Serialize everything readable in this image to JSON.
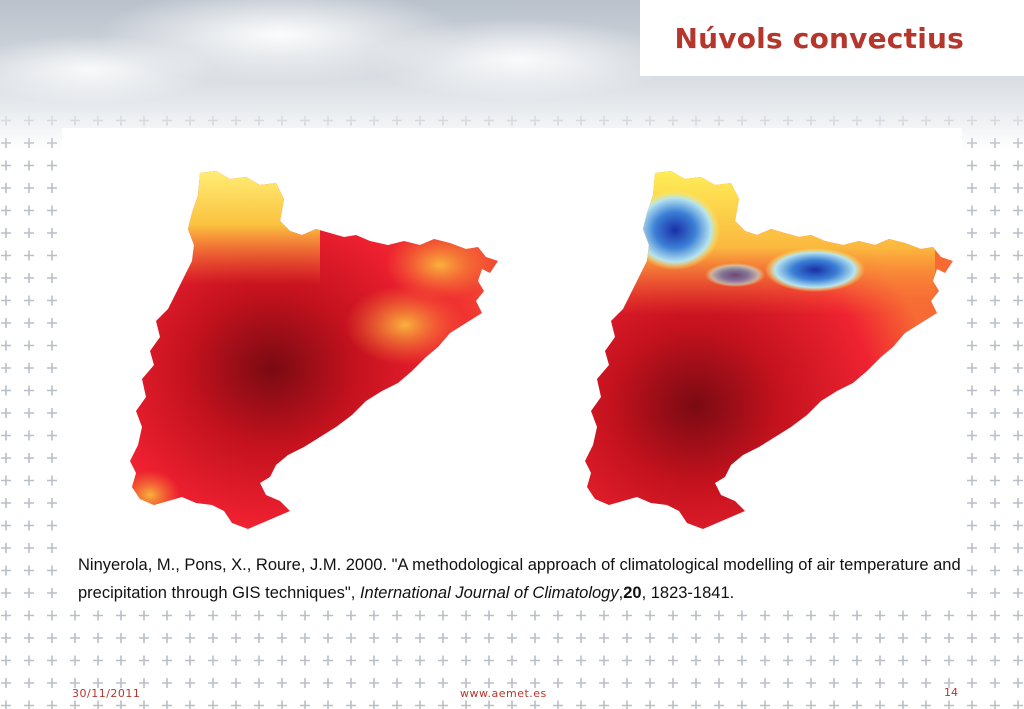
{
  "slide": {
    "title": "Núvols convectius",
    "citation": {
      "prefix": "Ninyerola, M., Pons, X., Roure, J.M. 2000. \"A methodological approach of climatological modelling of air temperature and precipitation through GIS techniques\", ",
      "journal": "International Journal of Climatology",
      "sep": ",",
      "volume": "20",
      "pages": ", 1823-1841."
    },
    "footer": {
      "date": "30/11/2011",
      "url": "www.aemet.es",
      "page": "14"
    }
  },
  "colors": {
    "accent": "#b5362c",
    "cross": "#b8bfc7"
  },
  "maps": [
    {
      "legend_hint": "temperature-warm",
      "palette": [
        "#7a0a12",
        "#b40f1a",
        "#e0182a",
        "#f53a30",
        "#f57a35",
        "#f9b23c",
        "#fde24a",
        "#fff27a"
      ]
    },
    {
      "legend_hint": "temperature-with-cold-peaks",
      "palette": [
        "#7a0a12",
        "#c4121e",
        "#ef2331",
        "#f76a34",
        "#fbb83e",
        "#fff15a",
        "#b7e4ef",
        "#3b7fd6",
        "#1a2fa6"
      ]
    }
  ]
}
